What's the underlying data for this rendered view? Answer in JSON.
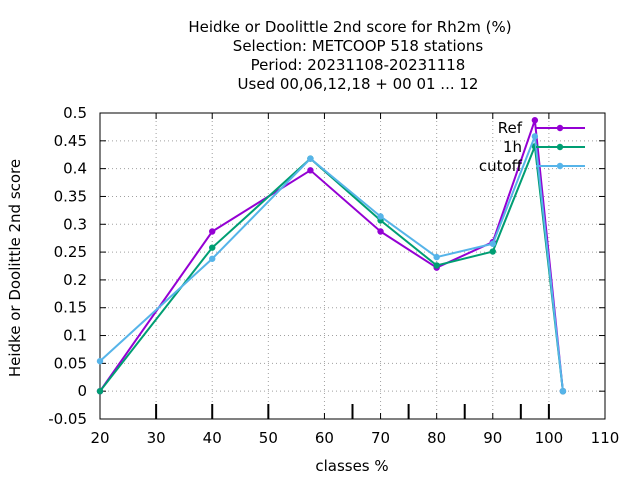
{
  "chart_data": {
    "type": "line",
    "title_lines": [
      "Heidke or Doolittle 2nd score  for Rh2m (%)",
      "Selection: METCOOP    518 stations",
      "Period: 20231108-20231118",
      "Used  00,06,12,18 + 00 01 ... 12"
    ],
    "xlabel": "classes %",
    "ylabel": "Heidke or Doolittle 2nd score",
    "xlim": [
      20,
      110
    ],
    "ylim": [
      -0.05,
      0.5
    ],
    "xticks": [
      20,
      30,
      40,
      50,
      60,
      70,
      80,
      90,
      100,
      110
    ],
    "yticks": [
      -0.05,
      0,
      0.05,
      0.1,
      0.15,
      0.2,
      0.25,
      0.3,
      0.35,
      0.4,
      0.45,
      0.5
    ],
    "ytick_labels": [
      "-0.05",
      "0",
      "0.05",
      "0.1",
      "0.15",
      "0.2",
      "0.25",
      "0.3",
      "0.35",
      "0.4",
      "0.45",
      "0.5"
    ],
    "class_bounds": [
      30,
      40,
      50,
      65,
      75,
      85,
      95,
      100
    ],
    "grid": true,
    "legend_position": "top-right",
    "series": [
      {
        "name": "Ref",
        "color": "#9400d3",
        "x": [
          20,
          40,
          57.5,
          70,
          80,
          90,
          97.5,
          102.5
        ],
        "y": [
          0.0,
          0.287,
          0.397,
          0.287,
          0.222,
          0.268,
          0.487,
          0.0
        ]
      },
      {
        "name": "1h",
        "color": "#009e73",
        "x": [
          20,
          40,
          57.5,
          70,
          80,
          90,
          97.5,
          102.5
        ],
        "y": [
          0.0,
          0.258,
          0.418,
          0.307,
          0.226,
          0.251,
          0.44,
          0.0
        ]
      },
      {
        "name": "cutoff",
        "color": "#56b4e9",
        "x": [
          20,
          40,
          57.5,
          70,
          80,
          90,
          97.5,
          102.5
        ],
        "y": [
          0.054,
          0.238,
          0.418,
          0.314,
          0.241,
          0.265,
          0.458,
          0.0
        ]
      }
    ]
  }
}
